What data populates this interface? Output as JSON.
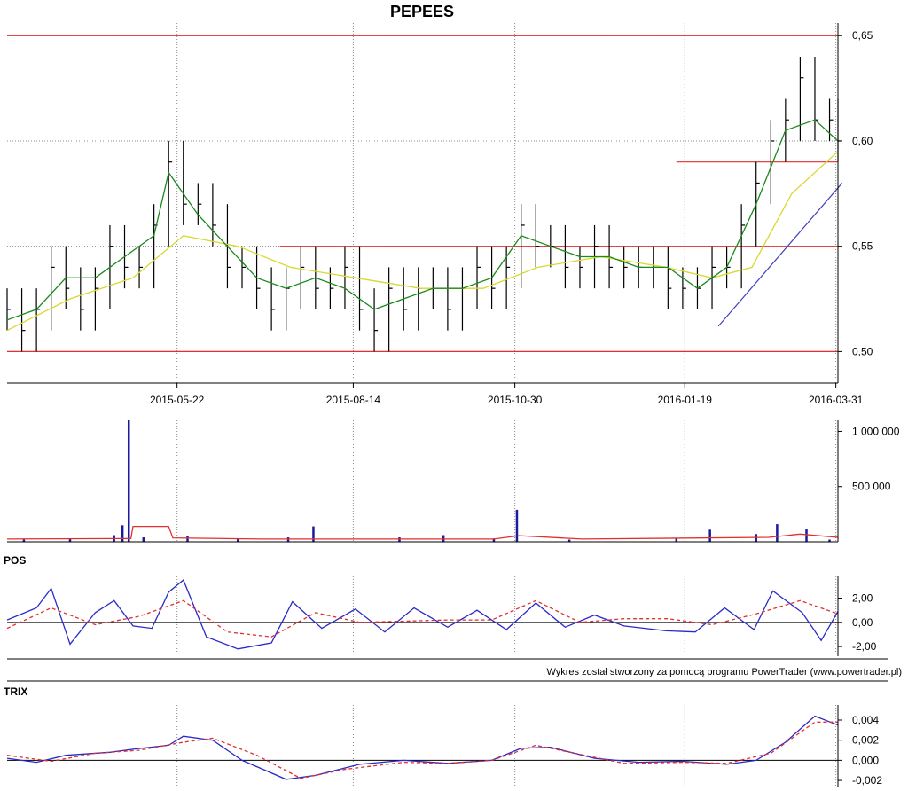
{
  "chart_data": [
    {
      "type": "ohlc",
      "panel": "price",
      "title": "PEPEES",
      "xlabel": "",
      "ylabel": "",
      "x_range": [
        "2015-03-02",
        "2016-04-01"
      ],
      "ylim": [
        0.485,
        0.656
      ],
      "yticks": [
        0.5,
        0.55,
        0.6,
        0.65
      ],
      "ytick_labels": [
        "0,50",
        "0,55",
        "0,60",
        "0,65"
      ],
      "xticks": [
        "2015-05-22",
        "2015-08-14",
        "2015-10-30",
        "2016-01-19",
        "2016-03-31"
      ],
      "grid": true,
      "close_series": [
        [
          "2015-03-02",
          0.52
        ],
        [
          "2015-03-09",
          0.51
        ],
        [
          "2015-03-16",
          0.52
        ],
        [
          "2015-03-23",
          0.54
        ],
        [
          "2015-03-30",
          0.53
        ],
        [
          "2015-04-06",
          0.52
        ],
        [
          "2015-04-13",
          0.53
        ],
        [
          "2015-04-20",
          0.55
        ],
        [
          "2015-04-27",
          0.54
        ],
        [
          "2015-05-04",
          0.54
        ],
        [
          "2015-05-11",
          0.56
        ],
        [
          "2015-05-18",
          0.59
        ],
        [
          "2015-05-25",
          0.57
        ],
        [
          "2015-06-01",
          0.57
        ],
        [
          "2015-06-08",
          0.56
        ],
        [
          "2015-06-15",
          0.54
        ],
        [
          "2015-06-22",
          0.54
        ],
        [
          "2015-06-29",
          0.53
        ],
        [
          "2015-07-06",
          0.52
        ],
        [
          "2015-07-13",
          0.53
        ],
        [
          "2015-07-20",
          0.54
        ],
        [
          "2015-07-27",
          0.53
        ],
        [
          "2015-08-03",
          0.53
        ],
        [
          "2015-08-10",
          0.54
        ],
        [
          "2015-08-17",
          0.52
        ],
        [
          "2015-08-24",
          0.51
        ],
        [
          "2015-08-31",
          0.53
        ],
        [
          "2015-09-07",
          0.52
        ],
        [
          "2015-09-14",
          0.53
        ],
        [
          "2015-09-21",
          0.53
        ],
        [
          "2015-09-28",
          0.52
        ],
        [
          "2015-10-05",
          0.53
        ],
        [
          "2015-10-12",
          0.54
        ],
        [
          "2015-10-19",
          0.53
        ],
        [
          "2015-10-26",
          0.54
        ],
        [
          "2015-11-02",
          0.56
        ],
        [
          "2015-11-09",
          0.55
        ],
        [
          "2015-11-16",
          0.55
        ],
        [
          "2015-11-23",
          0.54
        ],
        [
          "2015-11-30",
          0.54
        ],
        [
          "2015-12-07",
          0.55
        ],
        [
          "2015-12-14",
          0.54
        ],
        [
          "2015-12-21",
          0.54
        ],
        [
          "2015-12-28",
          0.54
        ],
        [
          "2016-01-04",
          0.54
        ],
        [
          "2016-01-11",
          0.53
        ],
        [
          "2016-01-18",
          0.53
        ],
        [
          "2016-01-25",
          0.53
        ],
        [
          "2016-02-01",
          0.54
        ],
        [
          "2016-02-08",
          0.54
        ],
        [
          "2016-02-15",
          0.56
        ],
        [
          "2016-02-22",
          0.58
        ],
        [
          "2016-02-29",
          0.6
        ],
        [
          "2016-03-07",
          0.61
        ],
        [
          "2016-03-14",
          0.63
        ],
        [
          "2016-03-21",
          0.61
        ],
        [
          "2016-03-28",
          0.61
        ],
        [
          "2016-04-01",
          0.6
        ]
      ],
      "short_ma": [
        [
          "2015-03-02",
          0.515
        ],
        [
          "2015-03-16",
          0.52
        ],
        [
          "2015-03-30",
          0.535
        ],
        [
          "2015-04-13",
          0.535
        ],
        [
          "2015-04-27",
          0.545
        ],
        [
          "2015-05-11",
          0.555
        ],
        [
          "2015-05-18",
          0.585
        ],
        [
          "2015-06-01",
          0.565
        ],
        [
          "2015-06-15",
          0.55
        ],
        [
          "2015-06-29",
          0.535
        ],
        [
          "2015-07-13",
          0.53
        ],
        [
          "2015-07-27",
          0.535
        ],
        [
          "2015-08-10",
          0.53
        ],
        [
          "2015-08-24",
          0.52
        ],
        [
          "2015-09-07",
          0.525
        ],
        [
          "2015-09-21",
          0.53
        ],
        [
          "2015-10-05",
          0.53
        ],
        [
          "2015-10-19",
          0.535
        ],
        [
          "2015-11-02",
          0.555
        ],
        [
          "2015-11-16",
          0.55
        ],
        [
          "2015-11-30",
          0.545
        ],
        [
          "2015-12-14",
          0.545
        ],
        [
          "2015-12-28",
          0.54
        ],
        [
          "2016-01-11",
          0.54
        ],
        [
          "2016-01-25",
          0.53
        ],
        [
          "2016-02-08",
          0.54
        ],
        [
          "2016-02-22",
          0.57
        ],
        [
          "2016-03-07",
          0.605
        ],
        [
          "2016-03-21",
          0.61
        ],
        [
          "2016-04-01",
          0.6
        ]
      ],
      "long_ma": [
        [
          "2015-03-02",
          0.51
        ],
        [
          "2015-04-01",
          0.525
        ],
        [
          "2015-05-01",
          0.535
        ],
        [
          "2015-05-25",
          0.555
        ],
        [
          "2015-06-20",
          0.55
        ],
        [
          "2015-07-15",
          0.54
        ],
        [
          "2015-08-15",
          0.535
        ],
        [
          "2015-09-15",
          0.53
        ],
        [
          "2015-10-15",
          0.53
        ],
        [
          "2015-11-10",
          0.54
        ],
        [
          "2015-12-10",
          0.545
        ],
        [
          "2016-01-10",
          0.54
        ],
        [
          "2016-02-01",
          0.535
        ],
        [
          "2016-02-20",
          0.54
        ],
        [
          "2016-03-10",
          0.575
        ],
        [
          "2016-04-01",
          0.595
        ]
      ],
      "hlines": [
        {
          "y": 0.65,
          "from": "2015-03-02",
          "to": "2016-04-01"
        },
        {
          "y": 0.59,
          "from": "2016-01-15",
          "to": "2016-04-01"
        },
        {
          "y": 0.55,
          "from": "2015-07-10",
          "to": "2016-04-01"
        },
        {
          "y": 0.5,
          "from": "2015-03-02",
          "to": "2016-04-01"
        }
      ],
      "trendline": {
        "from": [
          "2016-02-04",
          0.512
        ],
        "to": [
          "2016-04-03",
          0.58
        ]
      },
      "colors": {
        "bars": "#000000",
        "short_ma": "#1a8a1a",
        "long_ma": "#d8d830",
        "hlines": "#e03030",
        "trendline": "#4040c0"
      }
    },
    {
      "type": "bar",
      "panel": "volume",
      "ylim": [
        0,
        1100000
      ],
      "yticks": [
        500000,
        1000000
      ],
      "ytick_labels": [
        "500 000",
        "1 000 000"
      ],
      "values": [
        [
          "2015-03-10",
          20000
        ],
        [
          "2015-04-01",
          30000
        ],
        [
          "2015-04-22",
          60000
        ],
        [
          "2015-04-26",
          150000
        ],
        [
          "2015-04-29",
          1100000
        ],
        [
          "2015-05-06",
          40000
        ],
        [
          "2015-05-27",
          50000
        ],
        [
          "2015-06-20",
          30000
        ],
        [
          "2015-07-14",
          40000
        ],
        [
          "2015-07-26",
          140000
        ],
        [
          "2015-09-05",
          40000
        ],
        [
          "2015-09-26",
          60000
        ],
        [
          "2015-10-20",
          30000
        ],
        [
          "2015-10-31",
          290000
        ],
        [
          "2015-11-25",
          20000
        ],
        [
          "2016-01-15",
          30000
        ],
        [
          "2016-01-31",
          110000
        ],
        [
          "2016-02-22",
          70000
        ],
        [
          "2016-03-03",
          160000
        ],
        [
          "2016-03-17",
          120000
        ],
        [
          "2016-03-28",
          20000
        ]
      ],
      "average": [
        [
          "2015-03-02",
          25000
        ],
        [
          "2015-04-30",
          30000
        ],
        [
          "2015-05-01",
          140000
        ],
        [
          "2015-05-18",
          140000
        ],
        [
          "2015-05-20",
          35000
        ],
        [
          "2015-07-01",
          25000
        ],
        [
          "2015-10-20",
          25000
        ],
        [
          "2015-11-01",
          55000
        ],
        [
          "2015-12-01",
          25000
        ],
        [
          "2016-02-28",
          40000
        ],
        [
          "2016-03-14",
          70000
        ],
        [
          "2016-04-01",
          40000
        ]
      ],
      "colors": {
        "bars": "#1a1aa0",
        "average": "#e03030"
      }
    },
    {
      "type": "line",
      "panel": "oscillator",
      "label": "POS",
      "ylim": [
        -2.8,
        3.8
      ],
      "yticks": [
        -2,
        0,
        2
      ],
      "ytick_labels": [
        "-2,00",
        "0,00",
        "2,00"
      ],
      "series": [
        {
          "points": [
            [
              "2015-03-02",
              0.2
            ],
            [
              "2015-03-16",
              1.2
            ],
            [
              "2015-03-23",
              2.8
            ],
            [
              "2015-04-01",
              -1.8
            ],
            [
              "2015-04-13",
              0.8
            ],
            [
              "2015-04-22",
              1.8
            ],
            [
              "2015-05-01",
              -0.3
            ],
            [
              "2015-05-10",
              -0.5
            ],
            [
              "2015-05-18",
              2.5
            ],
            [
              "2015-05-25",
              3.5
            ],
            [
              "2015-06-05",
              -1.2
            ],
            [
              "2015-06-20",
              -2.2
            ],
            [
              "2015-07-06",
              -1.7
            ],
            [
              "2015-07-16",
              1.7
            ],
            [
              "2015-07-30",
              -0.5
            ],
            [
              "2015-08-15",
              1.1
            ],
            [
              "2015-08-29",
              -0.8
            ],
            [
              "2015-09-12",
              1.2
            ],
            [
              "2015-09-28",
              -0.4
            ],
            [
              "2015-10-12",
              1.0
            ],
            [
              "2015-10-26",
              -0.6
            ],
            [
              "2015-11-09",
              1.6
            ],
            [
              "2015-11-23",
              -0.4
            ],
            [
              "2015-12-07",
              0.6
            ],
            [
              "2015-12-21",
              -0.3
            ],
            [
              "2016-01-10",
              -0.7
            ],
            [
              "2016-01-24",
              -0.8
            ],
            [
              "2016-02-07",
              1.2
            ],
            [
              "2016-02-21",
              -0.6
            ],
            [
              "2016-03-01",
              2.6
            ],
            [
              "2016-03-15",
              0.8
            ],
            [
              "2016-03-24",
              -1.5
            ],
            [
              "2016-04-01",
              0.9
            ]
          ]
        },
        {
          "points": [
            [
              "2015-03-02",
              -0.5
            ],
            [
              "2015-03-23",
              1.2
            ],
            [
              "2015-04-13",
              -0.2
            ],
            [
              "2015-05-04",
              0.5
            ],
            [
              "2015-05-25",
              1.8
            ],
            [
              "2015-06-15",
              -0.8
            ],
            [
              "2015-07-06",
              -1.2
            ],
            [
              "2015-07-27",
              0.8
            ],
            [
              "2015-08-17",
              0.0
            ],
            [
              "2015-09-07",
              0.1
            ],
            [
              "2015-09-28",
              0.2
            ],
            [
              "2015-10-19",
              0.2
            ],
            [
              "2015-11-09",
              1.8
            ],
            [
              "2015-11-30",
              0.0
            ],
            [
              "2015-12-21",
              0.3
            ],
            [
              "2016-01-11",
              0.3
            ],
            [
              "2016-02-01",
              -0.2
            ],
            [
              "2016-02-22",
              0.7
            ],
            [
              "2016-03-14",
              1.8
            ],
            [
              "2016-04-01",
              0.7
            ]
          ]
        }
      ],
      "colors": [
        "#2a2ac8",
        "#e03030"
      ]
    },
    {
      "type": "line",
      "panel": "oscillator",
      "label": "TRIX",
      "ylim": [
        -0.0027,
        0.0055
      ],
      "yticks": [
        -0.002,
        0,
        0.002,
        0.004
      ],
      "ytick_labels": [
        "-0,002",
        "0,000",
        "0,002",
        "0,004"
      ],
      "series": [
        {
          "points": [
            [
              "2015-03-02",
              0.0002
            ],
            [
              "2015-03-16",
              -0.0002
            ],
            [
              "2015-03-30",
              0.0005
            ],
            [
              "2015-04-20",
              0.0008
            ],
            [
              "2015-05-01",
              0.0011
            ],
            [
              "2015-05-18",
              0.0015
            ],
            [
              "2015-05-25",
              0.0024
            ],
            [
              "2015-06-08",
              0.002
            ],
            [
              "2015-06-22",
              0.0
            ],
            [
              "2015-07-13",
              -0.0019
            ],
            [
              "2015-07-27",
              -0.0015
            ],
            [
              "2015-08-17",
              -0.0004
            ],
            [
              "2015-09-07",
              0.0
            ],
            [
              "2015-09-28",
              -0.0003
            ],
            [
              "2015-10-19",
              0.0
            ],
            [
              "2015-11-02",
              0.0012
            ],
            [
              "2015-11-16",
              0.0013
            ],
            [
              "2015-12-07",
              0.0002
            ],
            [
              "2015-12-28",
              -0.0002
            ],
            [
              "2016-01-18",
              -0.0001
            ],
            [
              "2016-02-08",
              -0.0004
            ],
            [
              "2016-02-22",
              0.0
            ],
            [
              "2016-03-07",
              0.0018
            ],
            [
              "2016-03-21",
              0.0044
            ],
            [
              "2016-04-01",
              0.0035
            ]
          ]
        },
        {
          "points": [
            [
              "2015-03-02",
              0.0005
            ],
            [
              "2015-03-23",
              -0.0001
            ],
            [
              "2015-04-13",
              0.0007
            ],
            [
              "2015-05-04",
              0.001
            ],
            [
              "2015-05-25",
              0.0018
            ],
            [
              "2015-06-08",
              0.0022
            ],
            [
              "2015-06-29",
              0.0005
            ],
            [
              "2015-07-20",
              -0.0018
            ],
            [
              "2015-08-10",
              -0.0009
            ],
            [
              "2015-09-07",
              -0.0002
            ],
            [
              "2015-09-28",
              -0.0003
            ],
            [
              "2015-10-19",
              0.0
            ],
            [
              "2015-11-09",
              0.0015
            ],
            [
              "2015-11-30",
              0.0006
            ],
            [
              "2015-12-21",
              -0.0003
            ],
            [
              "2016-01-18",
              -0.0002
            ],
            [
              "2016-02-08",
              -0.0003
            ],
            [
              "2016-02-29",
              0.0007
            ],
            [
              "2016-03-21",
              0.0038
            ],
            [
              "2016-04-01",
              0.0038
            ]
          ]
        }
      ],
      "colors": [
        "#2a2ac8",
        "#e03030"
      ]
    }
  ],
  "footer": {
    "credit": "Wykres został stworzony za pomocą programu PowerTrader (www.powertrader.pl)"
  }
}
